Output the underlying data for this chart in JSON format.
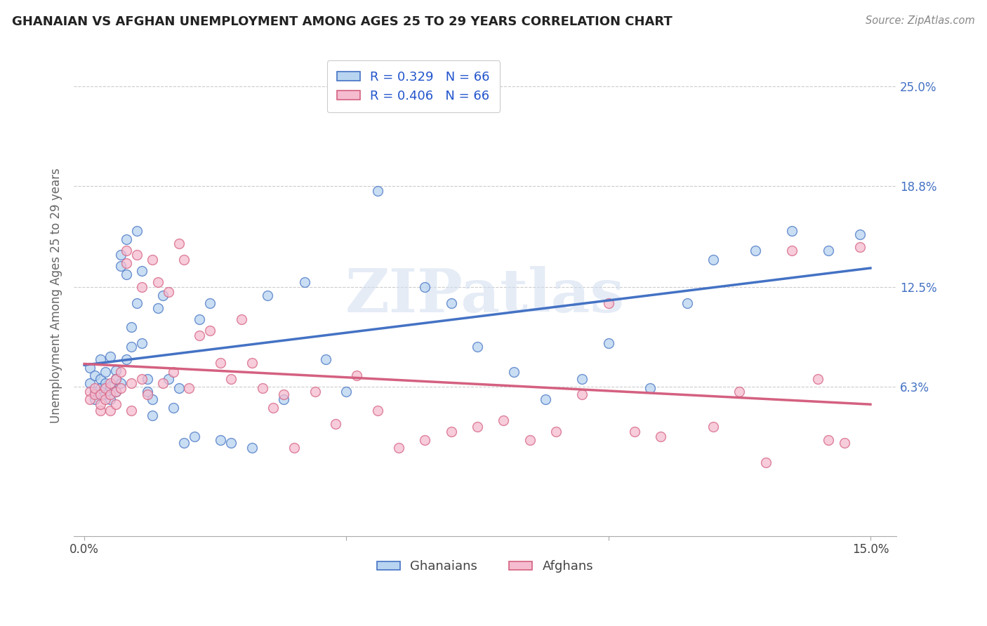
{
  "title": "GHANAIAN VS AFGHAN UNEMPLOYMENT AMONG AGES 25 TO 29 YEARS CORRELATION CHART",
  "source": "Source: ZipAtlas.com",
  "ylabel": "Unemployment Among Ages 25 to 29 years",
  "xlim": [
    -0.002,
    0.155
  ],
  "ylim": [
    -0.03,
    0.27
  ],
  "ytick_positions": [
    0.063,
    0.125,
    0.188,
    0.25
  ],
  "ytick_labels": [
    "6.3%",
    "12.5%",
    "18.8%",
    "25.0%"
  ],
  "xtick_positions": [
    0.0,
    0.05,
    0.1,
    0.15
  ],
  "xtick_labels": [
    "0.0%",
    "",
    "",
    "15.0%"
  ],
  "R_ghanaian": 0.329,
  "R_afghan": 0.406,
  "N": 66,
  "ghanaian_color": "#b8d4f0",
  "afghan_color": "#f5bcd0",
  "line_ghanaian_color": "#4472c4",
  "line_afghan_color": "#d46080",
  "legend_label1": "Ghanaians",
  "legend_label2": "Afghans",
  "ghanaian_x": [
    0.001,
    0.001,
    0.002,
    0.002,
    0.002,
    0.003,
    0.003,
    0.003,
    0.004,
    0.004,
    0.004,
    0.005,
    0.005,
    0.005,
    0.006,
    0.006,
    0.006,
    0.007,
    0.007,
    0.007,
    0.008,
    0.008,
    0.008,
    0.009,
    0.009,
    0.01,
    0.01,
    0.011,
    0.011,
    0.012,
    0.012,
    0.013,
    0.013,
    0.014,
    0.015,
    0.016,
    0.017,
    0.018,
    0.019,
    0.021,
    0.022,
    0.024,
    0.026,
    0.028,
    0.032,
    0.035,
    0.038,
    0.042,
    0.046,
    0.05,
    0.056,
    0.06,
    0.065,
    0.07,
    0.075,
    0.082,
    0.088,
    0.095,
    0.1,
    0.108,
    0.115,
    0.12,
    0.128,
    0.135,
    0.142,
    0.148
  ],
  "ghanaian_y": [
    0.075,
    0.065,
    0.07,
    0.06,
    0.055,
    0.08,
    0.068,
    0.062,
    0.072,
    0.058,
    0.065,
    0.082,
    0.063,
    0.055,
    0.073,
    0.068,
    0.06,
    0.145,
    0.138,
    0.065,
    0.155,
    0.133,
    0.08,
    0.1,
    0.088,
    0.16,
    0.115,
    0.09,
    0.135,
    0.06,
    0.068,
    0.055,
    0.045,
    0.112,
    0.12,
    0.068,
    0.05,
    0.062,
    0.028,
    0.032,
    0.105,
    0.115,
    0.03,
    0.028,
    0.025,
    0.12,
    0.055,
    0.128,
    0.08,
    0.06,
    0.185,
    0.25,
    0.125,
    0.115,
    0.088,
    0.072,
    0.055,
    0.068,
    0.09,
    0.062,
    0.115,
    0.142,
    0.148,
    0.16,
    0.148,
    0.158
  ],
  "afghan_x": [
    0.001,
    0.001,
    0.002,
    0.002,
    0.003,
    0.003,
    0.003,
    0.004,
    0.004,
    0.005,
    0.005,
    0.005,
    0.006,
    0.006,
    0.006,
    0.007,
    0.007,
    0.008,
    0.008,
    0.009,
    0.009,
    0.01,
    0.011,
    0.011,
    0.012,
    0.013,
    0.014,
    0.015,
    0.016,
    0.017,
    0.018,
    0.019,
    0.02,
    0.022,
    0.024,
    0.026,
    0.028,
    0.03,
    0.032,
    0.034,
    0.036,
    0.038,
    0.04,
    0.044,
    0.048,
    0.052,
    0.056,
    0.06,
    0.065,
    0.07,
    0.075,
    0.08,
    0.085,
    0.09,
    0.095,
    0.1,
    0.105,
    0.11,
    0.12,
    0.125,
    0.13,
    0.135,
    0.14,
    0.142,
    0.145,
    0.148
  ],
  "afghan_y": [
    0.06,
    0.055,
    0.058,
    0.062,
    0.048,
    0.052,
    0.058,
    0.062,
    0.055,
    0.065,
    0.058,
    0.048,
    0.068,
    0.06,
    0.052,
    0.072,
    0.062,
    0.148,
    0.14,
    0.065,
    0.048,
    0.145,
    0.125,
    0.068,
    0.058,
    0.142,
    0.128,
    0.065,
    0.122,
    0.072,
    0.152,
    0.142,
    0.062,
    0.095,
    0.098,
    0.078,
    0.068,
    0.105,
    0.078,
    0.062,
    0.05,
    0.058,
    0.025,
    0.06,
    0.04,
    0.07,
    0.048,
    0.025,
    0.03,
    0.035,
    0.038,
    0.042,
    0.03,
    0.035,
    0.058,
    0.115,
    0.035,
    0.032,
    0.038,
    0.06,
    0.016,
    0.148,
    0.068,
    0.03,
    0.028,
    0.15
  ]
}
